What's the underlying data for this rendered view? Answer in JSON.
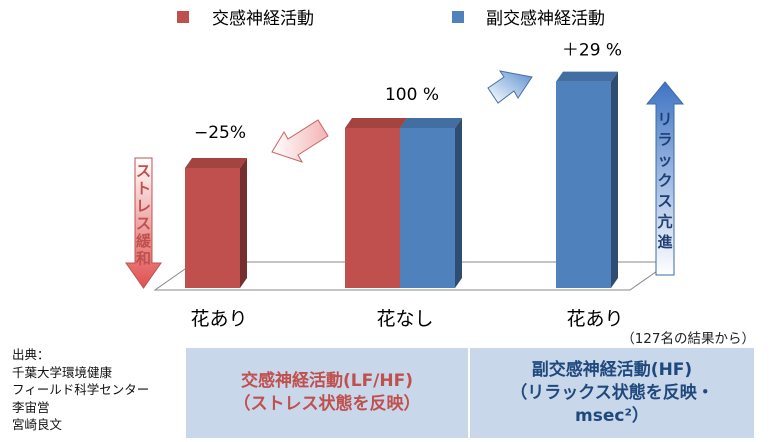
{
  "chart_data": {
    "type": "bar",
    "categories": [
      "花あり",
      "花なし",
      "花あり"
    ],
    "series": [
      {
        "name": "交感神経活動",
        "color": "#c0504d",
        "values": [
          75,
          100,
          null
        ]
      },
      {
        "name": "副交感神経活動",
        "color": "#4f81bd",
        "values": [
          null,
          100,
          129
        ]
      }
    ],
    "value_labels": [
      "−25%",
      "100 %",
      "＋29 %"
    ],
    "ylim": [
      0,
      140
    ],
    "legend_position": "top",
    "grid": false,
    "annotations": {
      "stress": "ストレス緩和",
      "relax": "リラックス亢進"
    },
    "title": "",
    "xlabel": "",
    "ylabel": ""
  },
  "note": "（127名の結果から）",
  "source": [
    "出典：",
    "千葉大学環境健康",
    "フィールド科学センター",
    "李宙営",
    "宮崎良文"
  ],
  "boxes": {
    "sympathetic": "交感神経活動(LF/HF)\n（ストレス状態を反映）",
    "parasympathetic": "副交感神経活動(HF)\n（リラックス状態を反映・\nmsec²）"
  }
}
